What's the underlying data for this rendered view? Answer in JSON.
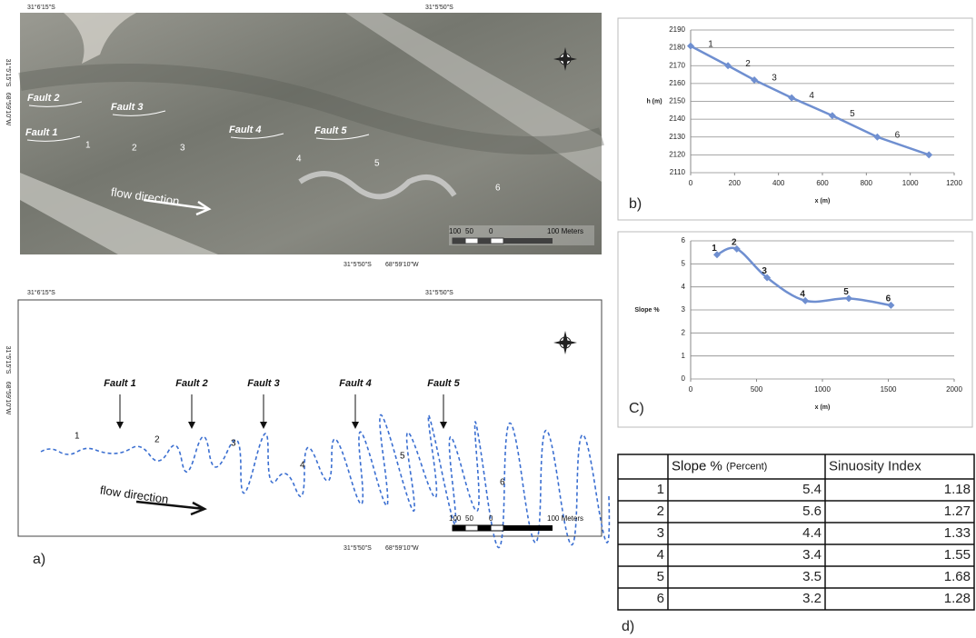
{
  "photo": {
    "coords_top": [
      "31°6'15\"S",
      "31°5'50\"S"
    ],
    "coords_left": [
      "31°5'15\"S",
      "68°59'10\"W"
    ],
    "coords_bottom": [
      "31°5'50\"S",
      "68°59'10\"W"
    ],
    "faults": [
      "Fault 1",
      "Fault 2",
      "Fault 3",
      "Fault 4",
      "Fault 5"
    ],
    "reaches": [
      "1",
      "2",
      "3",
      "4",
      "5",
      "6"
    ],
    "flow": "flow direction",
    "scale": [
      "100",
      "50",
      "0",
      "100 Meters"
    ]
  },
  "map": {
    "coords_top": [
      "31°6'15\"S",
      "31°5'50\"S"
    ],
    "coords_left": [
      "31°5'15\"S",
      "68°59'10\"W"
    ],
    "coords_bottom": [
      "31°5'50\"S",
      "68°59'10\"W"
    ],
    "faults": [
      "Fault 1",
      "Fault 2",
      "Fault 3",
      "Fault 4",
      "Fault 5"
    ],
    "reaches": [
      "1",
      "2",
      "3",
      "4",
      "5",
      "6"
    ],
    "flow": "flow direction",
    "scale": [
      "100",
      "50",
      "0",
      "100 Meters"
    ],
    "panel": "a)"
  },
  "chart_data": [
    {
      "type": "line",
      "panel": "b)",
      "xlabel": "x (m)",
      "ylabel": "h (m)",
      "color": "#6f8fd0",
      "smooth": false,
      "grid": true,
      "x": [
        0,
        170,
        290,
        460,
        645,
        850,
        1085
      ],
      "values": [
        2181,
        2170,
        2162,
        2152,
        2142,
        2130,
        2120
      ],
      "point_labels": [
        "1",
        "2",
        "3",
        "4",
        "5",
        "6",
        null
      ],
      "xlim": [
        0,
        1200
      ],
      "xticks": [
        0,
        200,
        400,
        600,
        800,
        1000,
        1200
      ],
      "ylim": [
        2110,
        2190
      ],
      "yticks": [
        2110,
        2120,
        2130,
        2140,
        2150,
        2160,
        2170,
        2180,
        2190
      ]
    },
    {
      "type": "line",
      "panel": "C)",
      "xlabel": "x (m)",
      "ylabel": "Slope %",
      "color": "#6f8fd0",
      "smooth": true,
      "grid": true,
      "x": [
        200,
        350,
        580,
        870,
        1200,
        1520
      ],
      "values": [
        5.4,
        5.65,
        4.4,
        3.4,
        3.5,
        3.2
      ],
      "point_labels": [
        "1",
        "2",
        "3",
        "4",
        "5",
        "6"
      ],
      "xlim": [
        0,
        2000
      ],
      "xticks": [
        0,
        500,
        1000,
        1500,
        2000
      ],
      "ylim": [
        0,
        6
      ],
      "yticks": [
        0,
        1,
        2,
        3,
        4,
        5,
        6
      ]
    }
  ],
  "table": {
    "panel": "d)",
    "header": {
      "slope": "Slope %",
      "slope_unit": "(Percent)",
      "sinuosity": "Sinuosity Index"
    },
    "rows": [
      [
        1,
        5.4,
        1.18
      ],
      [
        2,
        5.6,
        1.27
      ],
      [
        3,
        4.4,
        1.33
      ],
      [
        4,
        3.4,
        1.55
      ],
      [
        5,
        3.5,
        1.68
      ],
      [
        6,
        3.2,
        1.28
      ]
    ]
  }
}
